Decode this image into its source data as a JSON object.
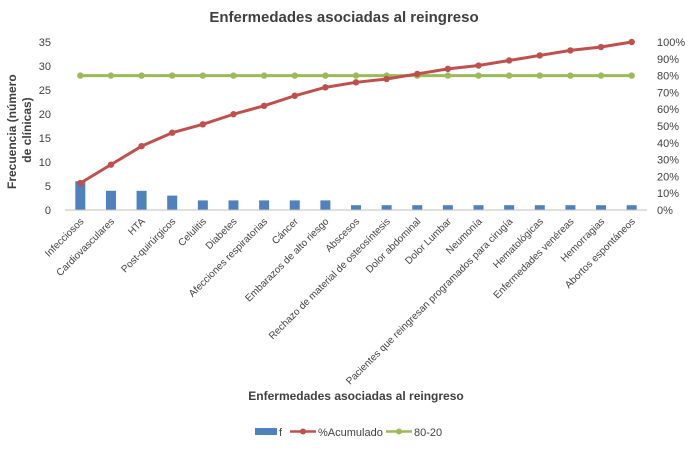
{
  "chart_data": {
    "type": "bar",
    "title": "Enfermedades asociadas al reingreso",
    "xlabel": "Enfermedades asociadas al reingreso",
    "ylabel_lines": [
      "Frecuencia (número",
      "de clínicas)"
    ],
    "ylim": [
      0,
      35
    ],
    "y_ticks": [
      "0",
      "5",
      "10",
      "15",
      "20",
      "25",
      "30",
      "35"
    ],
    "y2lim": [
      0,
      1
    ],
    "y2_ticks": [
      "0%",
      "10%",
      "20%",
      "30%",
      "40%",
      "50%",
      "60%",
      "70%",
      "80%",
      "90%",
      "100%"
    ],
    "categories": [
      "Infecciosos",
      "Cardiovasculares",
      "HTA",
      "Post-quirúrgicos",
      "Celulitis",
      "Diabetes",
      "Afecciones respiratorias",
      "Cáncer",
      "Embarazos de alto riesgo",
      "Abscesos",
      "Rechazo de material de osteosíntesis",
      "Dolor abdominal",
      "Dolor Lumbar",
      "Neumonía",
      "Pacientes que reingresan programados para cirugía",
      "Hematológicas",
      "Enfermedades venéreas",
      "Hemorragias",
      "Abortos espontáneos"
    ],
    "series": [
      {
        "name": "f",
        "kind": "bar",
        "axis": "left",
        "color": "#4F81BD",
        "values": [
          6,
          4,
          4,
          3,
          2,
          2,
          2,
          2,
          2,
          1,
          1,
          1,
          1,
          1,
          1,
          1,
          1,
          1,
          1
        ]
      },
      {
        "name": "%Acumulado",
        "kind": "line",
        "axis": "right",
        "color": "#C0504D",
        "values": [
          0.16,
          0.27,
          0.38,
          0.46,
          0.51,
          0.57,
          0.62,
          0.68,
          0.73,
          0.76,
          0.78,
          0.81,
          0.84,
          0.86,
          0.89,
          0.92,
          0.95,
          0.97,
          1.0
        ]
      },
      {
        "name": "80-20",
        "kind": "line",
        "axis": "right",
        "color": "#9BBB59",
        "values": [
          0.8,
          0.8,
          0.8,
          0.8,
          0.8,
          0.8,
          0.8,
          0.8,
          0.8,
          0.8,
          0.8,
          0.8,
          0.8,
          0.8,
          0.8,
          0.8,
          0.8,
          0.8,
          0.8
        ]
      }
    ],
    "grid": false,
    "legend_position": "bottom"
  }
}
